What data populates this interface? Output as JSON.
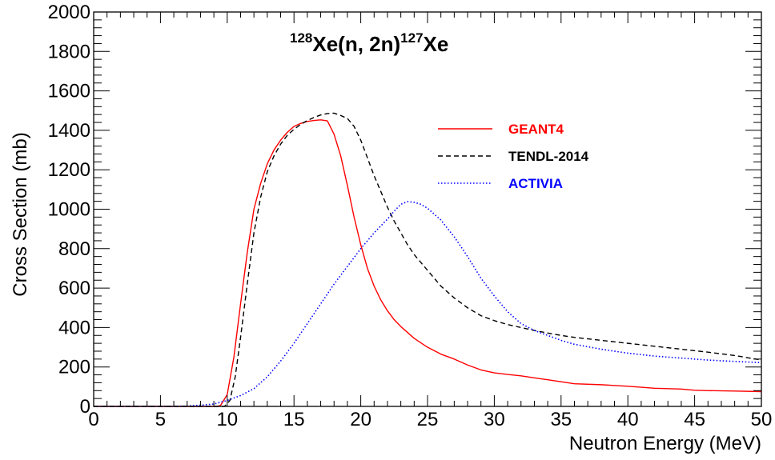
{
  "chart_data": {
    "type": "line",
    "title": {
      "pre_sup": "128",
      "main": "Xe(n, 2n)",
      "post_sup": "127",
      "tail": "Xe"
    },
    "xlabel": "Neutron Energy (MeV)",
    "ylabel": "Cross Section (mb)",
    "xlim": [
      0,
      50
    ],
    "ylim": [
      0,
      2000
    ],
    "x_ticks": [
      0,
      5,
      10,
      15,
      20,
      25,
      30,
      35,
      40,
      45,
      50
    ],
    "y_ticks": [
      0,
      200,
      400,
      600,
      800,
      1000,
      1200,
      1400,
      1600,
      1800,
      2000
    ],
    "grid": false,
    "legend_position": "top-right",
    "series": [
      {
        "name": "GEANT4",
        "color": "#ff0000",
        "style": "solid",
        "points": [
          [
            0,
            0
          ],
          [
            9.2,
            0
          ],
          [
            9.5,
            5
          ],
          [
            10,
            60
          ],
          [
            10.5,
            250
          ],
          [
            11,
            520
          ],
          [
            11.5,
            780
          ],
          [
            12,
            1000
          ],
          [
            12.5,
            1130
          ],
          [
            13,
            1230
          ],
          [
            13.5,
            1300
          ],
          [
            14,
            1350
          ],
          [
            14.5,
            1390
          ],
          [
            15,
            1420
          ],
          [
            15.5,
            1435
          ],
          [
            16,
            1445
          ],
          [
            16.5,
            1450
          ],
          [
            17,
            1453
          ],
          [
            17.5,
            1448
          ],
          [
            18,
            1380
          ],
          [
            18.5,
            1270
          ],
          [
            19,
            1120
          ],
          [
            19.5,
            960
          ],
          [
            20,
            820
          ],
          [
            20.5,
            700
          ],
          [
            21,
            610
          ],
          [
            21.5,
            540
          ],
          [
            22,
            485
          ],
          [
            22.5,
            440
          ],
          [
            23,
            405
          ],
          [
            23.5,
            375
          ],
          [
            24,
            345
          ],
          [
            25,
            300
          ],
          [
            26,
            265
          ],
          [
            27,
            240
          ],
          [
            28,
            210
          ],
          [
            29,
            185
          ],
          [
            30,
            170
          ],
          [
            31,
            162
          ],
          [
            32,
            155
          ],
          [
            33,
            145
          ],
          [
            34,
            135
          ],
          [
            35,
            125
          ],
          [
            36,
            115
          ],
          [
            38,
            110
          ],
          [
            40,
            102
          ],
          [
            42,
            92
          ],
          [
            44,
            88
          ],
          [
            45,
            82
          ],
          [
            46,
            80
          ],
          [
            48,
            78
          ],
          [
            50,
            75
          ]
        ]
      },
      {
        "name": "TENDL-2014",
        "color": "#000000",
        "style": "dashed",
        "points": [
          [
            0,
            0
          ],
          [
            9.8,
            0
          ],
          [
            10.2,
            30
          ],
          [
            10.6,
            150
          ],
          [
            11,
            350
          ],
          [
            11.5,
            620
          ],
          [
            12,
            880
          ],
          [
            12.5,
            1060
          ],
          [
            13,
            1190
          ],
          [
            13.5,
            1270
          ],
          [
            14,
            1330
          ],
          [
            14.5,
            1375
          ],
          [
            15,
            1405
          ],
          [
            15.5,
            1430
          ],
          [
            16,
            1450
          ],
          [
            16.5,
            1465
          ],
          [
            17,
            1478
          ],
          [
            17.5,
            1485
          ],
          [
            18,
            1487
          ],
          [
            18.5,
            1475
          ],
          [
            19,
            1460
          ],
          [
            19.5,
            1420
          ],
          [
            20,
            1350
          ],
          [
            20.5,
            1260
          ],
          [
            21,
            1170
          ],
          [
            21.5,
            1090
          ],
          [
            22,
            1010
          ],
          [
            22.5,
            940
          ],
          [
            23,
            880
          ],
          [
            23.5,
            820
          ],
          [
            24,
            770
          ],
          [
            25,
            690
          ],
          [
            26,
            610
          ],
          [
            27,
            550
          ],
          [
            28,
            500
          ],
          [
            29,
            460
          ],
          [
            30,
            435
          ],
          [
            31,
            415
          ],
          [
            32,
            400
          ],
          [
            33,
            385
          ],
          [
            34,
            372
          ],
          [
            35,
            360
          ],
          [
            36,
            350
          ],
          [
            38,
            335
          ],
          [
            40,
            320
          ],
          [
            42,
            305
          ],
          [
            44,
            290
          ],
          [
            46,
            275
          ],
          [
            48,
            258
          ],
          [
            50,
            235
          ]
        ]
      },
      {
        "name": "ACTIVIA",
        "color": "#0000ff",
        "style": "dotted",
        "points": [
          [
            0,
            0
          ],
          [
            6,
            0
          ],
          [
            7,
            2
          ],
          [
            8,
            6
          ],
          [
            9,
            12
          ],
          [
            10,
            30
          ],
          [
            11,
            55
          ],
          [
            12,
            90
          ],
          [
            13,
            150
          ],
          [
            14,
            230
          ],
          [
            15,
            320
          ],
          [
            16,
            420
          ],
          [
            17,
            520
          ],
          [
            18,
            620
          ],
          [
            19,
            710
          ],
          [
            20,
            800
          ],
          [
            21,
            880
          ],
          [
            22,
            950
          ],
          [
            22.5,
            990
          ],
          [
            23,
            1025
          ],
          [
            23.5,
            1038
          ],
          [
            24,
            1035
          ],
          [
            24.5,
            1025
          ],
          [
            25,
            1005
          ],
          [
            26,
            945
          ],
          [
            27,
            860
          ],
          [
            28,
            760
          ],
          [
            29,
            650
          ],
          [
            30,
            560
          ],
          [
            31,
            480
          ],
          [
            32,
            420
          ],
          [
            33,
            385
          ],
          [
            34,
            360
          ],
          [
            35,
            335
          ],
          [
            36,
            315
          ],
          [
            38,
            290
          ],
          [
            40,
            270
          ],
          [
            42,
            255
          ],
          [
            44,
            245
          ],
          [
            46,
            235
          ],
          [
            48,
            228
          ],
          [
            50,
            222
          ]
        ]
      }
    ]
  }
}
